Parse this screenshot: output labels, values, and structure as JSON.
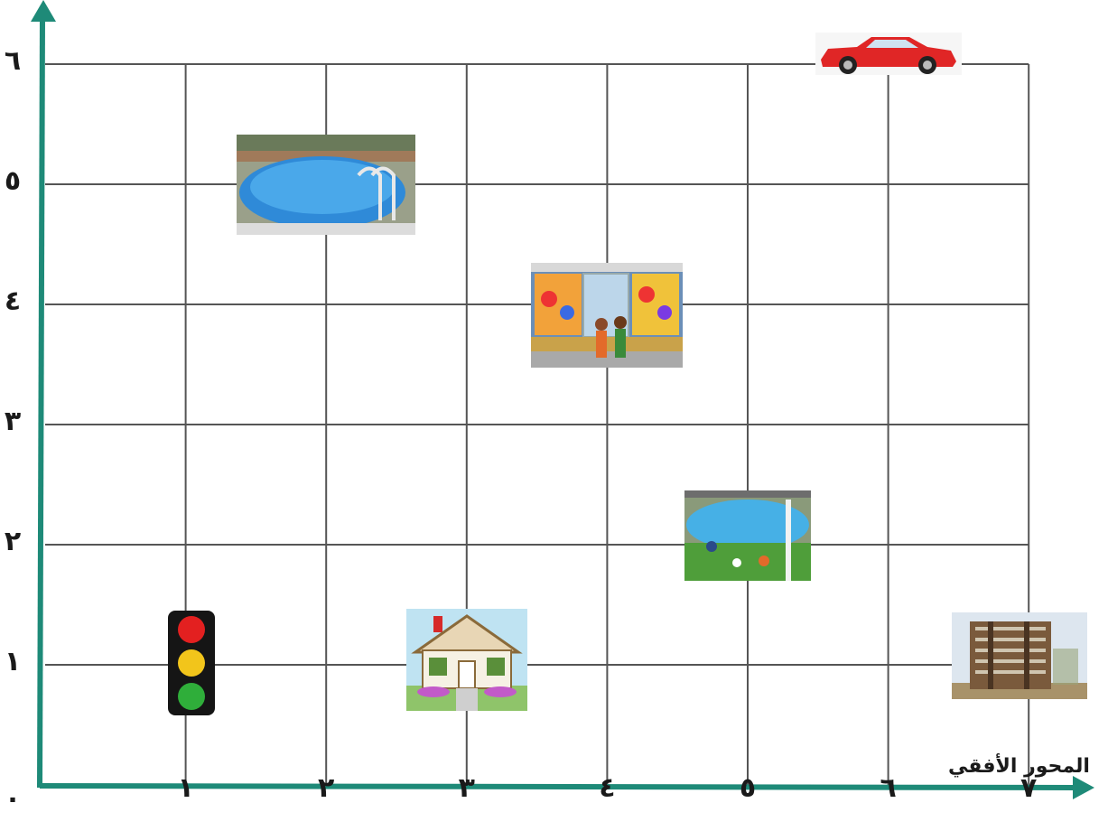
{
  "axes": {
    "horizontal_title": "المحور الأفقي",
    "x_ticks": [
      "١",
      "٢",
      "٣",
      "٤",
      "٥",
      "٦",
      "٧"
    ],
    "y_ticks": [
      "٦",
      "٥",
      "٤",
      "٣",
      "٢",
      "١"
    ],
    "origin": "٠"
  },
  "colors": {
    "axis": "#1e8a78",
    "grid": "#555555"
  },
  "chart_data": {
    "type": "scatter",
    "xlim": [
      0,
      7
    ],
    "ylim": [
      0,
      6
    ],
    "grid": true,
    "points": [
      {
        "icon": "traffic-light-icon",
        "x": 1,
        "y": 1
      },
      {
        "icon": "house-icon",
        "x": 3,
        "y": 1
      },
      {
        "icon": "apartment-building-icon",
        "x": 7,
        "y": 1
      },
      {
        "icon": "stadium-icon",
        "x": 5,
        "y": 2
      },
      {
        "icon": "toy-store-icon",
        "x": 4,
        "y": 4
      },
      {
        "icon": "swimming-pool-icon",
        "x": 2,
        "y": 5
      },
      {
        "icon": "car-icon",
        "x": 6,
        "y": 6
      }
    ]
  }
}
